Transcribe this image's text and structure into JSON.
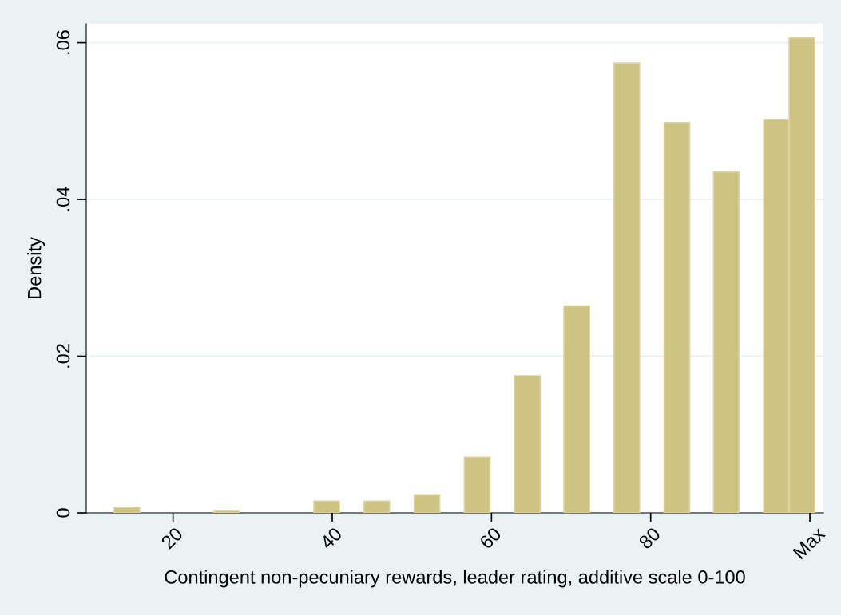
{
  "chart_data": {
    "type": "bar",
    "xlabel": "Contingent non-pecuniary rewards, leader rating, additive scale 0-100",
    "ylabel": "Density",
    "x": [
      14.2,
      26.7,
      39.3,
      45.6,
      51.9,
      58.2,
      64.5,
      70.7,
      77.0,
      83.3,
      89.5,
      95.8,
      99.0
    ],
    "values": [
      0.0007,
      0.0003,
      0.0015,
      0.0015,
      0.0023,
      0.0071,
      0.0175,
      0.0264,
      0.0574,
      0.0498,
      0.0435,
      0.0502,
      0.0606
    ],
    "color": "#cdc383",
    "xlim": [
      9.1,
      101.7
    ],
    "xticks": [
      20,
      40,
      60,
      80,
      {
        "value": 100,
        "label": "Max"
      }
    ],
    "ylim": [
      0,
      0.0624
    ],
    "yticks": [
      {
        "value": 0,
        "label": "0"
      },
      {
        "value": 0.02,
        "label": ".02"
      },
      {
        "value": 0.04,
        "label": ".04"
      },
      {
        "value": 0.06,
        "label": ".06"
      }
    ],
    "grid": "y"
  }
}
